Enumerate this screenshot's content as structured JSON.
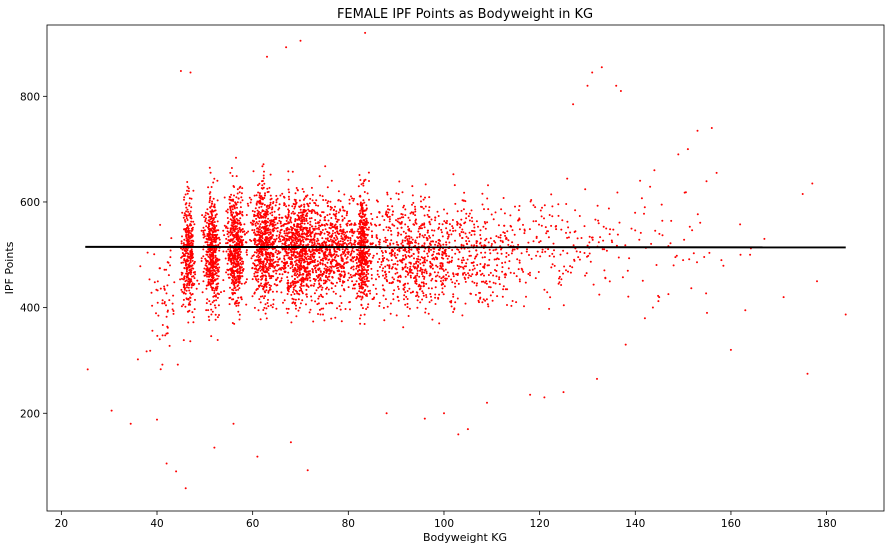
{
  "chart_data": {
    "type": "scatter",
    "title": "FEMALE IPF Points as Bodyweight in KG",
    "xlabel": "Bodyweight KG",
    "ylabel": "IPF Points",
    "xlim": [
      17,
      192
    ],
    "ylim": [
      15,
      935
    ],
    "x_ticks": [
      20,
      40,
      60,
      80,
      100,
      120,
      140,
      160,
      180
    ],
    "y_ticks": [
      200,
      400,
      600,
      800
    ],
    "grid": false,
    "marker_color": "#ff0000",
    "line_color": "#000000",
    "trend_line": {
      "x": [
        25,
        184
      ],
      "y": [
        515,
        514
      ]
    },
    "clusters": [
      {
        "x": 46.5,
        "y": 500,
        "xs": 0.7,
        "ys": 100,
        "n": 340
      },
      {
        "x": 51.5,
        "y": 505,
        "xs": 0.8,
        "ys": 105,
        "n": 480
      },
      {
        "x": 56.5,
        "y": 515,
        "xs": 1.0,
        "ys": 105,
        "n": 560
      },
      {
        "x": 62.5,
        "y": 520,
        "xs": 1.2,
        "ys": 110,
        "n": 640
      },
      {
        "x": 69.5,
        "y": 515,
        "xs": 2.4,
        "ys": 105,
        "n": 900
      },
      {
        "x": 77.0,
        "y": 510,
        "xs": 3.0,
        "ys": 100,
        "n": 650
      },
      {
        "x": 83.0,
        "y": 515,
        "xs": 0.6,
        "ys": 110,
        "n": 420
      },
      {
        "x": 92.0,
        "y": 505,
        "xs": 5.0,
        "ys": 100,
        "n": 620
      },
      {
        "x": 105.0,
        "y": 505,
        "xs": 7.0,
        "ys": 100,
        "n": 420
      },
      {
        "x": 122.0,
        "y": 520,
        "xs": 8.0,
        "ys": 105,
        "n": 190
      },
      {
        "x": 145.0,
        "y": 520,
        "xs": 10.0,
        "ys": 100,
        "n": 60
      },
      {
        "x": 42.0,
        "y": 420,
        "xs": 2.5,
        "ys": 120,
        "n": 70
      }
    ],
    "points": [
      [
        25.5,
        283
      ],
      [
        30.5,
        205
      ],
      [
        34.5,
        180
      ],
      [
        36,
        302
      ],
      [
        40,
        188
      ],
      [
        42,
        105
      ],
      [
        44,
        90
      ],
      [
        46,
        58
      ],
      [
        45,
        848
      ],
      [
        47,
        845
      ],
      [
        63,
        875
      ],
      [
        67,
        893
      ],
      [
        70,
        905
      ],
      [
        83.5,
        920
      ],
      [
        71.5,
        92
      ],
      [
        61,
        118
      ],
      [
        68,
        145
      ],
      [
        131,
        845
      ],
      [
        133,
        855
      ],
      [
        130,
        820
      ],
      [
        136,
        820
      ],
      [
        137,
        810
      ],
      [
        127,
        785
      ],
      [
        175,
        615
      ],
      [
        177,
        635
      ],
      [
        153,
        735
      ],
      [
        156,
        740
      ],
      [
        157,
        655
      ],
      [
        184,
        387
      ],
      [
        178,
        450
      ],
      [
        176,
        275
      ],
      [
        171,
        420
      ],
      [
        167,
        530
      ],
      [
        163,
        395
      ],
      [
        160,
        320
      ],
      [
        162,
        500
      ],
      [
        164,
        500
      ],
      [
        155,
        390
      ],
      [
        150,
        490
      ],
      [
        148,
        480
      ],
      [
        145,
        420
      ],
      [
        142,
        380
      ],
      [
        138,
        330
      ],
      [
        141,
        640
      ],
      [
        144,
        660
      ],
      [
        149,
        690
      ],
      [
        151,
        700
      ],
      [
        158,
        490
      ],
      [
        103,
        160
      ],
      [
        105,
        170
      ],
      [
        118,
        235
      ],
      [
        125,
        240
      ],
      [
        121,
        230
      ],
      [
        132,
        265
      ],
      [
        109,
        220
      ],
      [
        100,
        200
      ],
      [
        96,
        190
      ],
      [
        88,
        200
      ],
      [
        52,
        135
      ],
      [
        56,
        180
      ]
    ]
  }
}
